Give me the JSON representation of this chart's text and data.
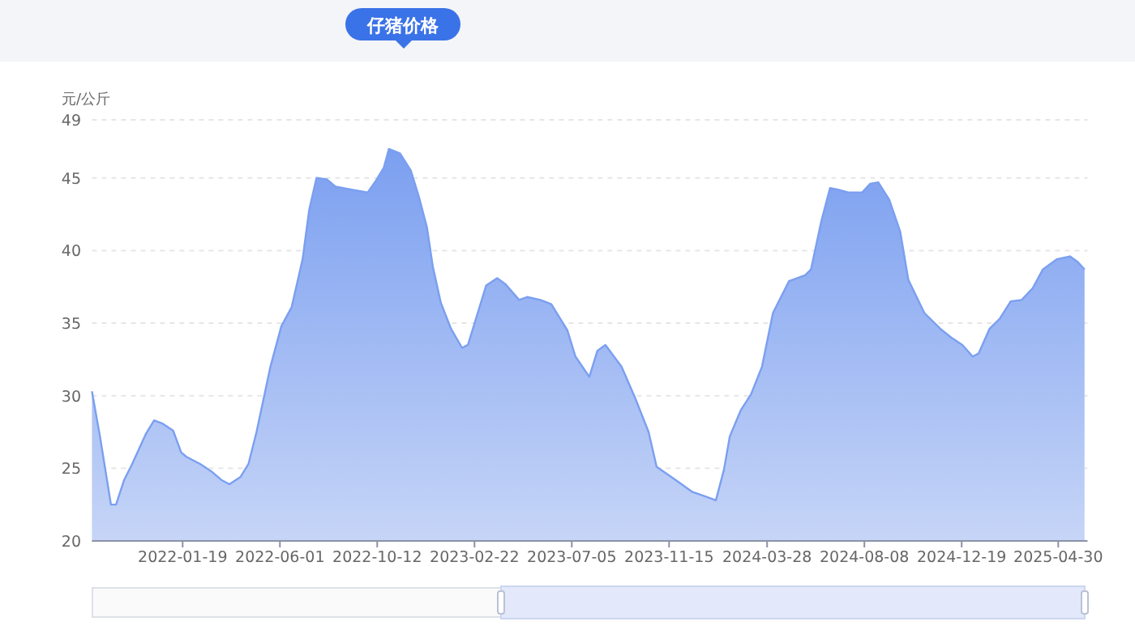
{
  "chart_data": {
    "type": "area",
    "title": "仔猪价格",
    "ylabel": "元/公斤",
    "color": "#7b9ff0",
    "grid": "y",
    "marker": "none",
    "ylim": [
      20,
      49
    ],
    "yticks": [
      20,
      25,
      30,
      35,
      40,
      45,
      49
    ],
    "xlim": [
      "2021-09-17",
      "2025-06-09"
    ],
    "xticks": [
      "2022-01-19",
      "2022-06-01",
      "2022-10-12",
      "2023-02-22",
      "2023-07-05",
      "2023-11-15",
      "2024-03-28",
      "2024-08-08",
      "2024-12-19",
      "2025-04-30"
    ],
    "x": [
      "2021-09-17",
      "2021-09-28",
      "2021-10-13",
      "2021-10-20",
      "2021-10-31",
      "2021-11-11",
      "2021-11-30",
      "2021-12-11",
      "2021-12-22",
      "2022-01-06",
      "2022-01-17",
      "2022-01-24",
      "2022-02-12",
      "2022-02-27",
      "2022-03-13",
      "2022-03-24",
      "2022-04-08",
      "2022-04-19",
      "2022-04-30",
      "2022-05-19",
      "2022-06-03",
      "2022-06-17",
      "2022-07-02",
      "2022-07-11",
      "2022-07-21",
      "2022-08-04",
      "2022-08-16",
      "2022-09-07",
      "2022-09-29",
      "2022-10-10",
      "2022-10-21",
      "2022-10-28",
      "2022-11-12",
      "2022-11-27",
      "2022-12-08",
      "2022-12-19",
      "2022-12-27",
      "2023-01-07",
      "2023-01-21",
      "2023-02-05",
      "2023-02-13",
      "2023-02-24",
      "2023-03-10",
      "2023-03-25",
      "2023-04-05",
      "2023-04-24",
      "2023-05-05",
      "2023-05-23",
      "2023-06-07",
      "2023-06-29",
      "2023-07-10",
      "2023-07-29",
      "2023-08-09",
      "2023-08-20",
      "2023-09-11",
      "2023-09-30",
      "2023-10-18",
      "2023-10-29",
      "2023-11-24",
      "2023-12-16",
      "2024-01-07",
      "2024-01-18",
      "2024-01-29",
      "2024-02-06",
      "2024-02-21",
      "2024-03-06",
      "2024-03-21",
      "2024-04-05",
      "2024-04-27",
      "2024-05-19",
      "2024-05-27",
      "2024-06-10",
      "2024-06-22",
      "2024-07-03",
      "2024-07-17",
      "2024-08-05",
      "2024-08-16",
      "2024-08-27",
      "2024-09-11",
      "2024-09-26",
      "2024-10-07",
      "2024-10-29",
      "2024-11-20",
      "2024-12-05",
      "2024-12-20",
      "2025-01-03",
      "2025-01-11",
      "2025-01-26",
      "2025-02-09",
      "2025-02-24",
      "2025-03-11",
      "2025-03-26",
      "2025-04-09",
      "2025-04-28",
      "2025-05-16",
      "2025-05-27",
      "2025-06-05"
    ],
    "values": [
      30.3,
      27.2,
      22.5,
      22.5,
      24.2,
      25.3,
      27.4,
      28.3,
      28.1,
      27.6,
      26.1,
      25.8,
      25.3,
      24.8,
      24.2,
      23.9,
      24.4,
      25.3,
      27.5,
      32.0,
      34.8,
      36.1,
      39.4,
      42.8,
      45.0,
      44.9,
      44.4,
      44.2,
      44.0,
      44.8,
      45.7,
      47.0,
      46.7,
      45.5,
      43.7,
      41.6,
      38.9,
      36.4,
      34.6,
      33.3,
      33.5,
      35.3,
      37.6,
      38.1,
      37.7,
      36.6,
      36.8,
      36.6,
      36.3,
      34.5,
      32.7,
      31.3,
      33.1,
      33.5,
      32.0,
      29.8,
      27.5,
      25.1,
      24.2,
      23.4,
      23.0,
      22.8,
      24.9,
      27.2,
      29.0,
      30.1,
      32.0,
      35.7,
      37.9,
      38.3,
      38.7,
      42.0,
      44.3,
      44.2,
      44.0,
      44.0,
      44.6,
      44.7,
      43.5,
      41.3,
      38.0,
      35.7,
      34.6,
      34.0,
      33.5,
      32.7,
      32.9,
      34.6,
      35.3,
      36.5,
      36.6,
      37.4,
      38.7,
      39.4,
      39.6,
      39.2,
      38.7
    ]
  }
}
